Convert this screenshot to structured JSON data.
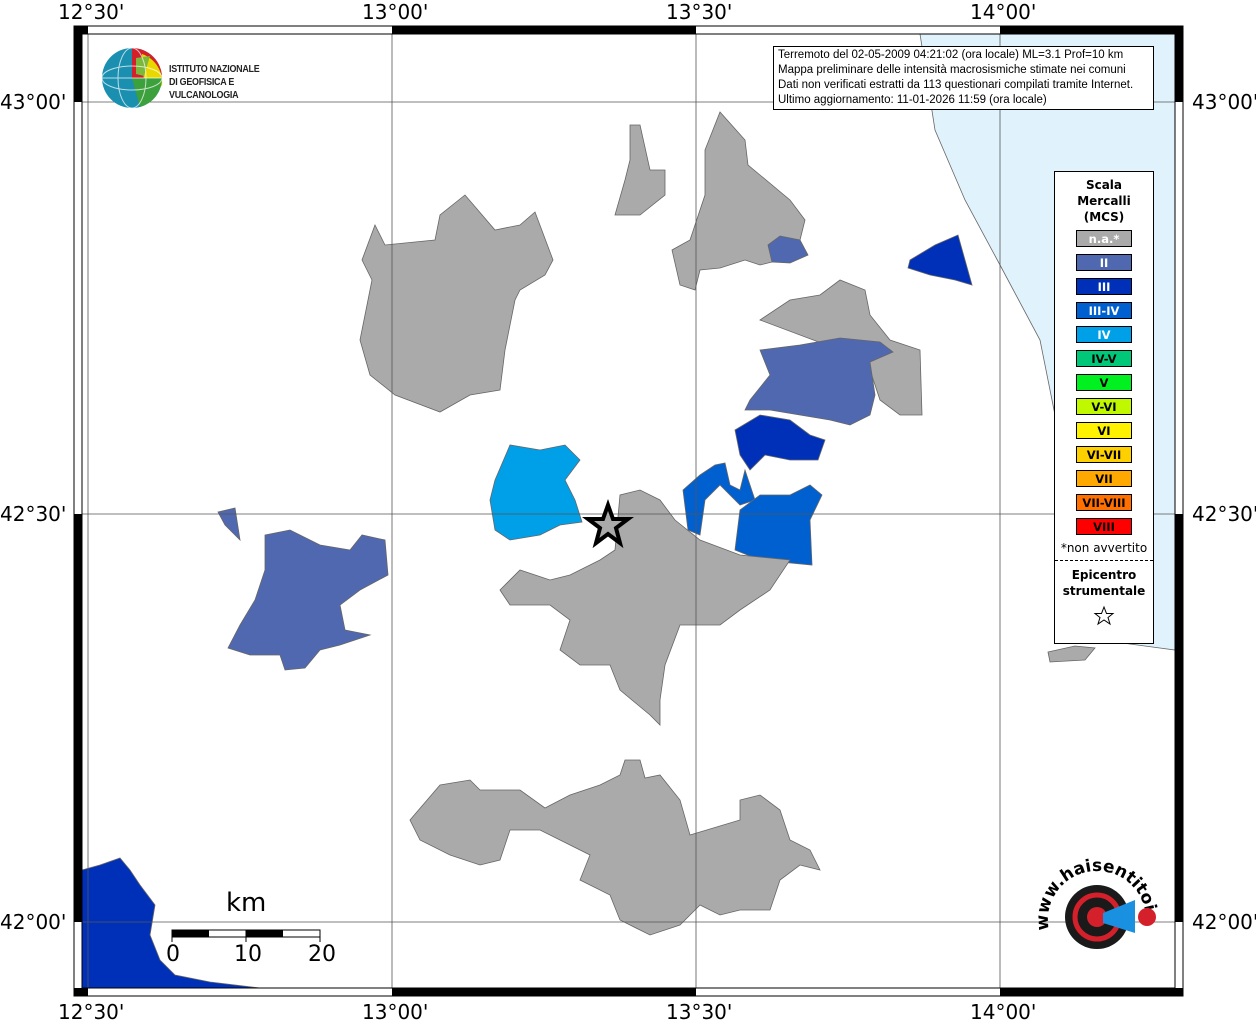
{
  "map": {
    "lon_labels": [
      "12°30'",
      "13°00'",
      "13°30'",
      "14°00'"
    ],
    "lat_labels": [
      "43°00'",
      "42°30'",
      "42°00'"
    ],
    "colors": {
      "na": "#aaaaaa",
      "II": "#5068b0",
      "III": "#0030b8",
      "III-IV": "#0060d0",
      "IV": "#00a0e8",
      "sea": "#e0f2fc"
    }
  },
  "info_box": {
    "lines": [
      "Terremoto del 02-05-2009 04:21:02 (ora locale) ML=3.1 Prof=10 km",
      "Mappa preliminare delle intensità macrosismiche stimate nei comuni",
      "Dati non verificati estratti da 113 questionari compilati tramite Internet.",
      "Ultimo aggiornamento: 11-01-2026 11:59 (ora locale)"
    ]
  },
  "logo_ingv": {
    "line1": "ISTITUTO NAZIONALE",
    "line2": "DI GEOFISICA E VULCANOLOGIA"
  },
  "logo_hsit": {
    "text": "www.haisentitoilterremoto.it"
  },
  "legend": {
    "title": [
      "Scala",
      "Mercalli",
      "(MCS)"
    ],
    "items": [
      {
        "label": "n.a.*",
        "color": "#aaaaaa",
        "text_color": "#ffffff"
      },
      {
        "label": "II",
        "color": "#5068b0",
        "text_color": "#ffffff"
      },
      {
        "label": "III",
        "color": "#0030b8",
        "text_color": "#ffffff"
      },
      {
        "label": "III-IV",
        "color": "#0060d0",
        "text_color": "#ffffff"
      },
      {
        "label": "IV",
        "color": "#00a0e8",
        "text_color": "#ffffff"
      },
      {
        "label": "IV-V",
        "color": "#00c878",
        "text_color": "#000000"
      },
      {
        "label": "V",
        "color": "#00f020",
        "text_color": "#000000"
      },
      {
        "label": "V-VI",
        "color": "#c0f800",
        "text_color": "#000000"
      },
      {
        "label": "VI",
        "color": "#fff200",
        "text_color": "#000000"
      },
      {
        "label": "VI-VII",
        "color": "#ffd000",
        "text_color": "#000000"
      },
      {
        "label": "VII",
        "color": "#ffa800",
        "text_color": "#000000"
      },
      {
        "label": "VII-VIII",
        "color": "#ff7000",
        "text_color": "#000000"
      },
      {
        "label": "VIII",
        "color": "#ff0000",
        "text_color": "#000000"
      }
    ],
    "note": "*non avvertito",
    "epicenter": [
      "Epicentro",
      "strumentale"
    ]
  },
  "scale_bar": {
    "unit": "km",
    "ticks": [
      "0",
      "10",
      "20"
    ]
  }
}
